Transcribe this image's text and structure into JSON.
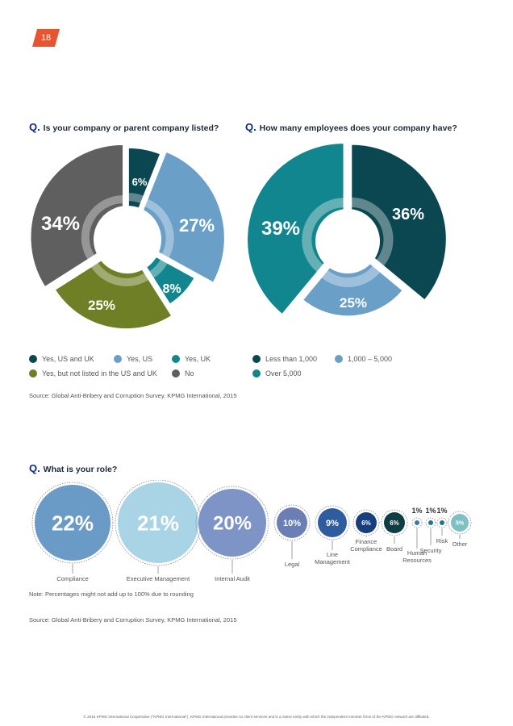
{
  "page_number": "18",
  "colors": {
    "accent": "#e8542f",
    "question_mark": "#0a2a8a"
  },
  "q1": {
    "mark": "Q.",
    "text": "Is your company or parent company listed?"
  },
  "q2": {
    "mark": "Q.",
    "text": "How many employees does your company have?"
  },
  "q3": {
    "mark": "Q.",
    "text": "What is your role?"
  },
  "chart_data": [
    {
      "type": "pie",
      "title": "Is your company or parent company listed?",
      "slices": [
        {
          "label": "Yes, US and UK",
          "value": 6,
          "text": "6%",
          "color": "#0b4750"
        },
        {
          "label": "Yes, US",
          "value": 27,
          "text": "27%",
          "color": "#6a9fc7"
        },
        {
          "label": "Yes, UK",
          "value": 8,
          "text": "8%",
          "color": "#12868e"
        },
        {
          "label": "Yes, but not listed in the US and UK",
          "value": 25,
          "text": "25%",
          "color": "#6e7f26"
        },
        {
          "label": "No",
          "value": 34,
          "text": "34%",
          "color": "#5f5f5f"
        }
      ],
      "legend": [
        {
          "label": "Yes, US and UK",
          "color": "#0b4750"
        },
        {
          "label": "Yes, US",
          "color": "#6a9fc7"
        },
        {
          "label": "Yes, UK",
          "color": "#12868e"
        },
        {
          "label": "Yes, but not listed in the US and UK",
          "color": "#6e7f26"
        },
        {
          "label": "No",
          "color": "#5f5f5f"
        }
      ]
    },
    {
      "type": "pie",
      "title": "How many employees does your company have?",
      "slices": [
        {
          "label": "Less than 1,000",
          "value": 36,
          "text": "36%",
          "color": "#0b4750"
        },
        {
          "label": "1,000 – 5,000",
          "value": 25,
          "text": "25%",
          "color": "#6a9fc7"
        },
        {
          "label": "Over 5,000",
          "value": 39,
          "text": "39%",
          "color": "#12868e"
        }
      ],
      "legend": [
        {
          "label": "Less than 1,000",
          "color": "#0b4750"
        },
        {
          "label": "1,000 – 5,000",
          "color": "#6a9fc7"
        },
        {
          "label": "Over 5,000",
          "color": "#12868e"
        }
      ]
    },
    {
      "type": "bubble",
      "title": "What is your role?",
      "items": [
        {
          "label": "Compliance",
          "value": 22,
          "text": "22%",
          "color": "#6a9ac6"
        },
        {
          "label": "Executive Management",
          "value": 21,
          "text": "21%",
          "color": "#a8d4e6"
        },
        {
          "label": "Internal Audit",
          "value": 20,
          "text": "20%",
          "color": "#7e94c6"
        },
        {
          "label": "Legal",
          "value": 10,
          "text": "10%",
          "color": "#6b7fb4"
        },
        {
          "label": "Line Management",
          "value": 9,
          "text": "9%",
          "color": "#2f5c9e"
        },
        {
          "label": "Finance Compliance",
          "value": 6,
          "text": "6%",
          "color": "#173f7e"
        },
        {
          "label": "Board",
          "value": 6,
          "text": "6%",
          "color": "#0e3e44"
        },
        {
          "label": "Human Resources",
          "value": 1,
          "text": "1%",
          "color": "#3a7aa3"
        },
        {
          "label": "Security",
          "value": 1,
          "text": "1%",
          "color": "#1c7b86"
        },
        {
          "label": "Risk",
          "value": 1,
          "text": "1%",
          "color": "#1c7b86"
        },
        {
          "label": "Other",
          "value": 5,
          "text": "5%",
          "color": "#7ec0c6"
        }
      ]
    }
  ],
  "legend1": {
    "items": [
      "Yes, US and UK",
      "Yes, US",
      "Yes, UK",
      "Yes, but not listed in the US and UK",
      "No"
    ]
  },
  "legend2": {
    "items": [
      "Less than 1,000",
      "1,000 – 5,000",
      "Over 5,000"
    ]
  },
  "source1": "Source: Global Anti-Bribery and Corruption Survey, KPMG International, 2015",
  "note": "Note: Percentages might not add up to 100% due to rounding",
  "source2": "Source: Global Anti-Bribery and Corruption Survey, KPMG International, 2015",
  "footer": "© 2015 KPMG International Cooperative (\"KPMG International\"). KPMG International provides no client services and is a Swiss entity with which the independent member firms of the KPMG network are affiliated."
}
